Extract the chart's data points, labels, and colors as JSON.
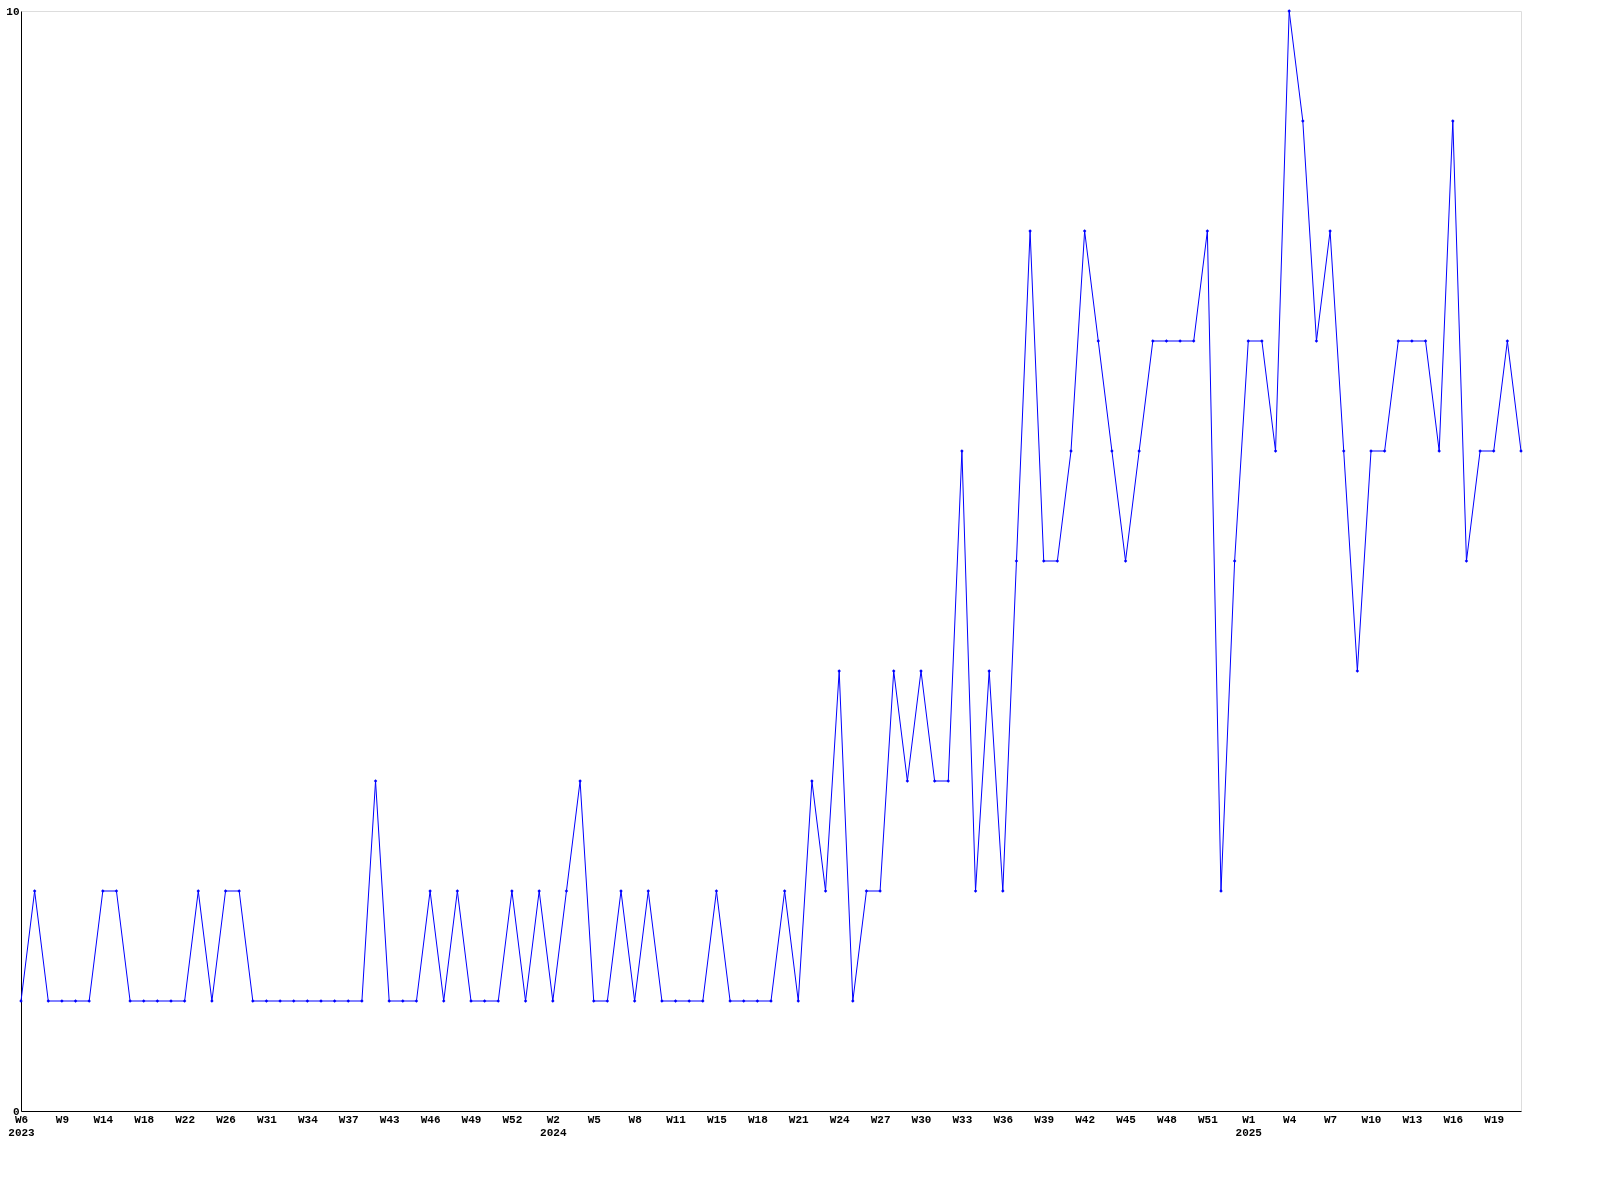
{
  "chart_data": {
    "type": "line",
    "categories": [
      "W6\n2023",
      null,
      null,
      "W9",
      null,
      null,
      "W14",
      null,
      null,
      "W18",
      null,
      null,
      "W22",
      null,
      null,
      "W26",
      null,
      null,
      "W31",
      null,
      null,
      "W34",
      null,
      null,
      "W37",
      null,
      null,
      "W43",
      null,
      null,
      "W46",
      null,
      null,
      "W49",
      null,
      null,
      "W52",
      null,
      null,
      "W2\n2024",
      null,
      null,
      "W5",
      null,
      null,
      "W8",
      null,
      null,
      "W11",
      null,
      null,
      "W15",
      null,
      null,
      "W18",
      null,
      null,
      "W21",
      null,
      null,
      "W24",
      null,
      null,
      "W27",
      null,
      null,
      "W30",
      null,
      null,
      "W33",
      null,
      null,
      "W36",
      null,
      null,
      "W39",
      null,
      null,
      "W42",
      null,
      null,
      "W45",
      null,
      null,
      "W48",
      null,
      null,
      "W51",
      null,
      null,
      "W1\n2025",
      null,
      null,
      "W4",
      null,
      null,
      "W7",
      null,
      null,
      "W10",
      null,
      null,
      "W13",
      null,
      null,
      "W16",
      null,
      null,
      "W19",
      null,
      null
    ],
    "series": [
      {
        "color": "#0000ff",
        "values": [
          1,
          2,
          1,
          1,
          1,
          1,
          2,
          2,
          1,
          1,
          1,
          1,
          1,
          2,
          1,
          2,
          2,
          1,
          1,
          1,
          1,
          1,
          1,
          1,
          1,
          1,
          3,
          1,
          1,
          1,
          2,
          1,
          2,
          1,
          1,
          1,
          2,
          1,
          2,
          1,
          2,
          3,
          1,
          1,
          2,
          1,
          2,
          1,
          1,
          1,
          1,
          2,
          1,
          1,
          1,
          1,
          2,
          1,
          3,
          2,
          4,
          1,
          2,
          2,
          4,
          3,
          4,
          3,
          3,
          6,
          2,
          4,
          2,
          5,
          8,
          5,
          5,
          6,
          8,
          7,
          6,
          5,
          6,
          7,
          7,
          7,
          7,
          8,
          2,
          5,
          7,
          7,
          6,
          10,
          9,
          7,
          8,
          6,
          4,
          6,
          6,
          7,
          7,
          7,
          6,
          9,
          5,
          6,
          6,
          7,
          6
        ]
      }
    ],
    "ylim": [
      0,
      10
    ],
    "yticks": [
      0,
      10
    ],
    "grid": false,
    "marker": "diamond",
    "line_style": "solid"
  }
}
